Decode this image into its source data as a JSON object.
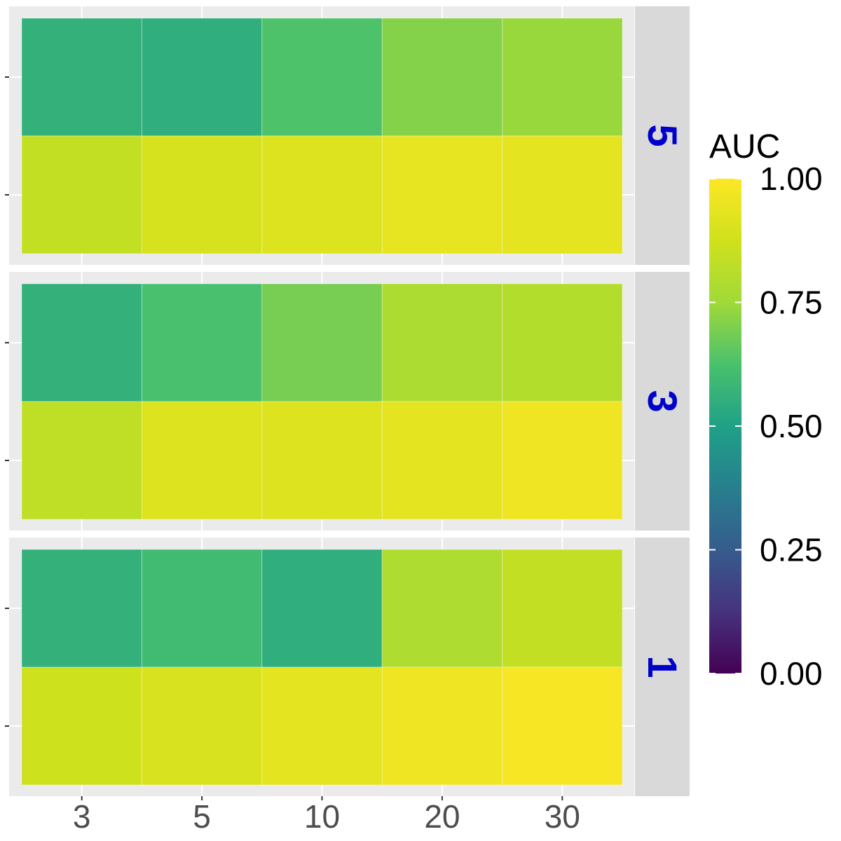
{
  "chart_data": {
    "type": "heatmap",
    "title": "",
    "xlabel": "",
    "ylabel": "",
    "x_categories": [
      "3",
      "5",
      "10",
      "20",
      "30"
    ],
    "y_rows": [
      "upper",
      "lower"
    ],
    "y_tick_labels": [
      "",
      ""
    ],
    "facet_labels": [
      "5",
      "3",
      "1"
    ],
    "facet_label_color": "#0000CC",
    "facets": [
      {
        "label": "5",
        "values": [
          [
            0.56,
            0.55,
            0.63,
            0.71,
            0.74
          ],
          [
            0.84,
            0.89,
            0.91,
            0.94,
            0.93
          ]
        ]
      },
      {
        "label": "3",
        "values": [
          [
            0.56,
            0.62,
            0.69,
            0.78,
            0.8
          ],
          [
            0.83,
            0.91,
            0.91,
            0.93,
            0.96
          ]
        ]
      },
      {
        "label": "1",
        "values": [
          [
            0.56,
            0.6,
            0.55,
            0.79,
            0.84
          ],
          [
            0.87,
            0.9,
            0.93,
            0.96,
            0.98
          ]
        ]
      }
    ],
    "legend": {
      "title": "AUC",
      "ticks": [
        "0.00",
        "0.25",
        "0.50",
        "0.75",
        "1.00"
      ],
      "range": [
        0,
        1
      ],
      "palette": "viridis",
      "placement": "right"
    },
    "grid": true
  }
}
